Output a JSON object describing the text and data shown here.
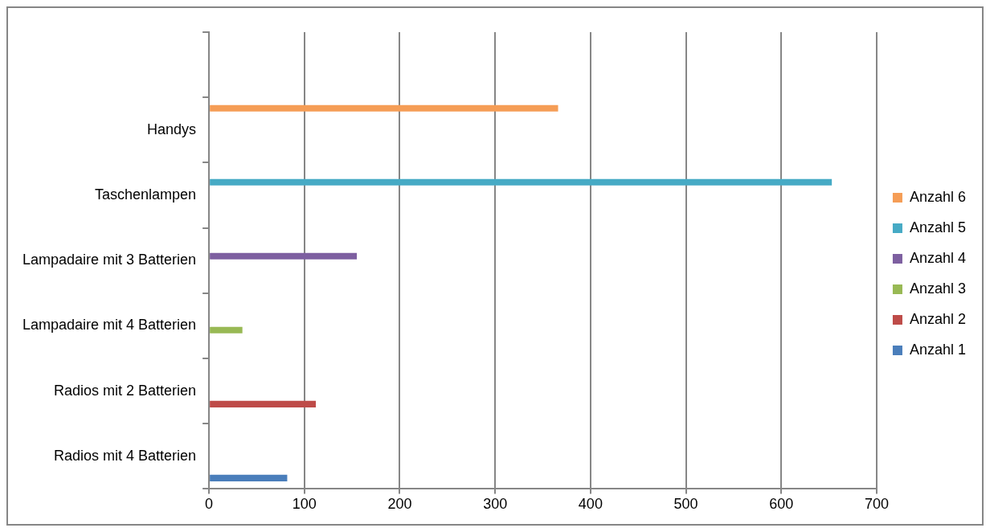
{
  "chart_data": {
    "type": "bar",
    "orientation": "horizontal",
    "categories": [
      null,
      "Handys",
      "Taschenlampen",
      "Lampadaire mit 3 Batterien",
      "Lampadaire mit 4 Batterien",
      "Radios mit 2 Batterien",
      "Radios mit 4 Batterien"
    ],
    "series": [
      {
        "name": "Anzahl 1",
        "color": "#4a7ebb",
        "values": [
          null,
          null,
          null,
          null,
          null,
          null,
          82
        ]
      },
      {
        "name": "Anzahl 2",
        "color": "#be4b48",
        "values": [
          null,
          null,
          null,
          null,
          null,
          112,
          null
        ]
      },
      {
        "name": "Anzahl 3",
        "color": "#98b954",
        "values": [
          null,
          null,
          null,
          null,
          35,
          null,
          null
        ]
      },
      {
        "name": "Anzahl 4",
        "color": "#7d5fa0",
        "values": [
          null,
          null,
          null,
          155,
          null,
          null,
          null
        ]
      },
      {
        "name": "Anzahl 5",
        "color": "#46aac5",
        "values": [
          null,
          null,
          653,
          null,
          null,
          null,
          null
        ]
      },
      {
        "name": "Anzahl 6",
        "color": "#f59d56",
        "values": [
          null,
          366,
          null,
          null,
          null,
          null,
          null
        ]
      }
    ],
    "xlim": [
      0,
      700
    ],
    "xticks": [
      0,
      100,
      200,
      300,
      400,
      500,
      600,
      700
    ],
    "grid": "x",
    "legend": "right"
  }
}
